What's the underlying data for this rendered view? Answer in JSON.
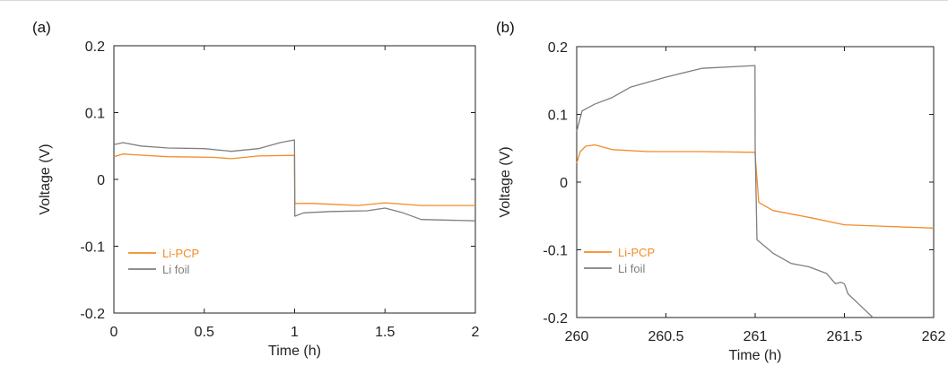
{
  "chart_data": [
    {
      "panel_label": "(a)",
      "type": "line",
      "xlabel": "Time (h)",
      "ylabel": "Voltage (V)",
      "xlim": [
        0,
        2
      ],
      "ylim": [
        -0.2,
        0.2
      ],
      "x_ticks": [
        "0",
        "0.5",
        "1",
        "1.5",
        "2"
      ],
      "y_ticks": [
        "0.2",
        "0.1",
        "0",
        "-0.1",
        "-0.2"
      ],
      "x_tick_values": [
        0,
        0.5,
        1,
        1.5,
        2
      ],
      "y_tick_values": [
        0.2,
        0.1,
        0,
        -0.1,
        -0.2
      ],
      "legend_position": "bottom-left",
      "series": [
        {
          "name": "Li-PCP",
          "color": "#f28c28",
          "points": [
            [
              0,
              0.034
            ],
            [
              0.05,
              0.038
            ],
            [
              0.1,
              0.037
            ],
            [
              0.3,
              0.034
            ],
            [
              0.55,
              0.033
            ],
            [
              0.65,
              0.031
            ],
            [
              0.8,
              0.035
            ],
            [
              0.999,
              0.036
            ],
            [
              1.001,
              -0.036
            ],
            [
              1.1,
              -0.036
            ],
            [
              1.35,
              -0.039
            ],
            [
              1.5,
              -0.035
            ],
            [
              1.6,
              -0.037
            ],
            [
              1.7,
              -0.039
            ],
            [
              2.0,
              -0.039
            ]
          ]
        },
        {
          "name": "Li foil",
          "color": "#7f7f7f",
          "points": [
            [
              0,
              0.052
            ],
            [
              0.05,
              0.055
            ],
            [
              0.15,
              0.05
            ],
            [
              0.3,
              0.047
            ],
            [
              0.5,
              0.046
            ],
            [
              0.65,
              0.042
            ],
            [
              0.8,
              0.046
            ],
            [
              0.92,
              0.055
            ],
            [
              0.999,
              0.059
            ],
            [
              1.0,
              0.03
            ],
            [
              1.001,
              -0.055
            ],
            [
              1.05,
              -0.05
            ],
            [
              1.2,
              -0.048
            ],
            [
              1.4,
              -0.047
            ],
            [
              1.5,
              -0.043
            ],
            [
              1.6,
              -0.05
            ],
            [
              1.7,
              -0.06
            ],
            [
              2.0,
              -0.062
            ]
          ]
        }
      ]
    },
    {
      "panel_label": "(b)",
      "type": "line",
      "xlabel": "Time (h)",
      "ylabel": "Voltage (V)",
      "xlim": [
        260,
        262
      ],
      "ylim": [
        -0.2,
        0.2
      ],
      "x_ticks": [
        "260",
        "260.5",
        "261",
        "261.5",
        "262"
      ],
      "y_ticks": [
        "0.2",
        "0.1",
        "0",
        "-0.1",
        "-0.2"
      ],
      "x_tick_values": [
        260,
        260.5,
        261,
        261.5,
        262
      ],
      "y_tick_values": [
        0.2,
        0.1,
        0,
        -0.1,
        -0.2
      ],
      "legend_position": "bottom-left",
      "series": [
        {
          "name": "Li-PCP",
          "color": "#f28c28",
          "points": [
            [
              260,
              0.028
            ],
            [
              260.02,
              0.045
            ],
            [
              260.05,
              0.053
            ],
            [
              260.1,
              0.055
            ],
            [
              260.2,
              0.048
            ],
            [
              260.4,
              0.045
            ],
            [
              260.7,
              0.045
            ],
            [
              260.999,
              0.044
            ],
            [
              261.0,
              0.04
            ],
            [
              261.02,
              -0.03
            ],
            [
              261.1,
              -0.042
            ],
            [
              261.3,
              -0.052
            ],
            [
              261.5,
              -0.063
            ],
            [
              261.7,
              -0.065
            ],
            [
              262.0,
              -0.068
            ]
          ]
        },
        {
          "name": "Li foil",
          "color": "#7f7f7f",
          "points": [
            [
              260,
              0.075
            ],
            [
              260.03,
              0.105
            ],
            [
              260.1,
              0.115
            ],
            [
              260.2,
              0.125
            ],
            [
              260.3,
              0.14
            ],
            [
              260.5,
              0.155
            ],
            [
              260.7,
              0.168
            ],
            [
              260.999,
              0.172
            ],
            [
              261.0,
              0.05
            ],
            [
              261.01,
              -0.085
            ],
            [
              261.1,
              -0.105
            ],
            [
              261.2,
              -0.12
            ],
            [
              261.3,
              -0.125
            ],
            [
              261.4,
              -0.135
            ],
            [
              261.45,
              -0.15
            ],
            [
              261.48,
              -0.148
            ],
            [
              261.5,
              -0.15
            ],
            [
              261.52,
              -0.165
            ],
            [
              261.6,
              -0.185
            ],
            [
              261.66,
              -0.2
            ]
          ]
        }
      ]
    }
  ]
}
